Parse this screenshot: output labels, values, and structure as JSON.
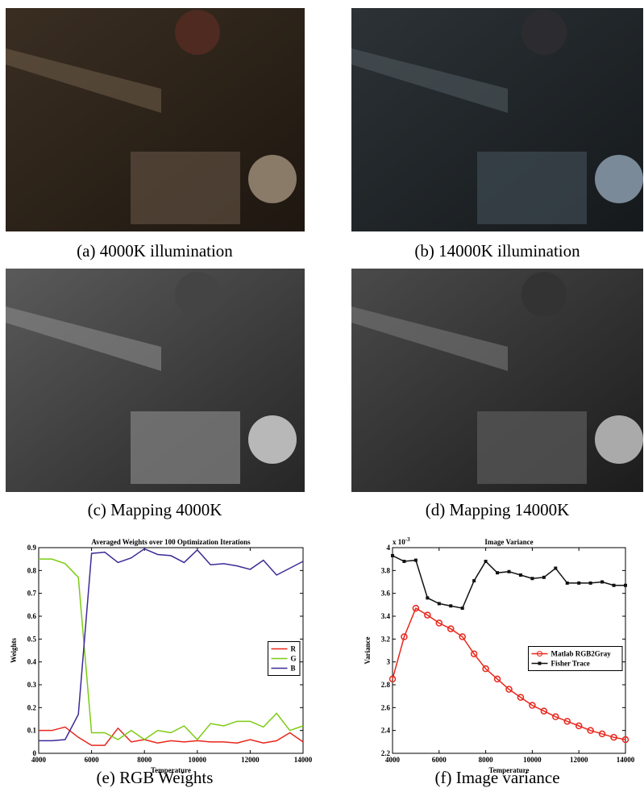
{
  "captions": [
    "(a) 4000K illumination",
    "(b) 14000K illumination",
    "(c) Mapping 4000K",
    "(d) Mapping 14000K",
    "(e) RGB Weights",
    "(f) Image variance"
  ],
  "chart_data": [
    {
      "type": "line",
      "title": "Averaged Weights over 100 Optimization Iterations",
      "x_label": "Temperature",
      "y_label": "Weights",
      "x": [
        4000,
        4500,
        5000,
        5500,
        6000,
        6500,
        7000,
        7500,
        8000,
        8500,
        9000,
        9500,
        10000,
        10500,
        11000,
        11500,
        12000,
        12500,
        13000,
        13500,
        14000
      ],
      "series": [
        {
          "name": "R",
          "color": "#e8261b",
          "values": [
            0.1,
            0.1,
            0.115,
            0.07,
            0.035,
            0.035,
            0.11,
            0.05,
            0.06,
            0.045,
            0.055,
            0.05,
            0.055,
            0.05,
            0.05,
            0.045,
            0.06,
            0.045,
            0.055,
            0.09,
            0.05
          ]
        },
        {
          "name": "G",
          "color": "#7ccb12",
          "values": [
            0.85,
            0.85,
            0.83,
            0.77,
            0.09,
            0.09,
            0.06,
            0.1,
            0.06,
            0.1,
            0.09,
            0.12,
            0.06,
            0.13,
            0.12,
            0.14,
            0.14,
            0.115,
            0.175,
            0.1,
            0.12
          ]
        },
        {
          "name": "B",
          "color": "#3b2a96",
          "values": [
            0.055,
            0.055,
            0.06,
            0.17,
            0.875,
            0.88,
            0.835,
            0.855,
            0.895,
            0.87,
            0.865,
            0.835,
            0.89,
            0.825,
            0.83,
            0.82,
            0.805,
            0.845,
            0.78,
            0.81,
            0.84
          ]
        }
      ],
      "xlim": [
        4000,
        14000
      ],
      "xticks": [
        4000,
        6000,
        8000,
        10000,
        12000,
        14000
      ],
      "ylim": [
        0,
        0.9
      ],
      "yticks": [
        0,
        0.1,
        0.2,
        0.3,
        0.4,
        0.5,
        0.6,
        0.7,
        0.8,
        0.9
      ],
      "legend": "right"
    },
    {
      "type": "line",
      "title": "Image Variance",
      "x_label": "Temperature",
      "y_label": "Variance",
      "y_offset_text": "x 10",
      "y_offset_exponent": "-3",
      "x": [
        4000,
        4500,
        5000,
        5500,
        6000,
        6500,
        7000,
        7500,
        8000,
        8500,
        9000,
        9500,
        10000,
        10500,
        11000,
        11500,
        12000,
        12500,
        13000,
        13500,
        14000
      ],
      "series": [
        {
          "name": "Matlab RGB2Gray",
          "color": "#e8261b",
          "marker": "circle",
          "values": [
            2.85,
            3.22,
            3.47,
            3.41,
            3.34,
            3.29,
            3.22,
            3.07,
            2.94,
            2.85,
            2.76,
            2.69,
            2.62,
            2.57,
            2.52,
            2.48,
            2.44,
            2.4,
            2.37,
            2.34,
            2.32
          ]
        },
        {
          "name": "Fisher Trace",
          "color": "#111111",
          "marker": "square",
          "values": [
            3.93,
            3.88,
            3.89,
            3.56,
            3.51,
            3.49,
            3.47,
            3.71,
            3.88,
            3.78,
            3.79,
            3.76,
            3.73,
            3.74,
            3.82,
            3.69,
            3.69,
            3.69,
            3.7,
            3.67,
            3.67
          ]
        }
      ],
      "xlim": [
        4000,
        14000
      ],
      "xticks": [
        4000,
        6000,
        8000,
        10000,
        12000,
        14000
      ],
      "ylim": [
        2.2,
        4
      ],
      "yticks": [
        2.2,
        2.4,
        2.6,
        2.8,
        3,
        3.2,
        3.4,
        3.6,
        3.8,
        4
      ],
      "legend": "right"
    }
  ]
}
